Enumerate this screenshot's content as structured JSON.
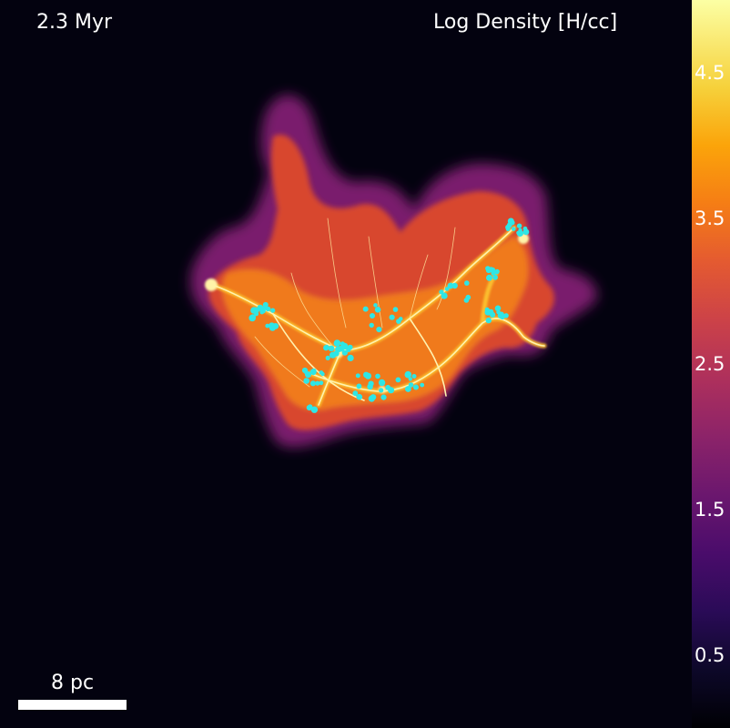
{
  "panel": {
    "time_label": "2.3 Myr",
    "field_label": "Log Density [H/cc]"
  },
  "scale_bar": {
    "label": "8 pc"
  },
  "colorbar": {
    "colormap": "inferno",
    "ticks": [
      "0.5",
      "1.5",
      "2.5",
      "3.5",
      "4.5"
    ]
  },
  "colors": {
    "background": "#03020f",
    "star_particles": "#2ee6e6",
    "annotation_text": "#ffffff"
  }
}
